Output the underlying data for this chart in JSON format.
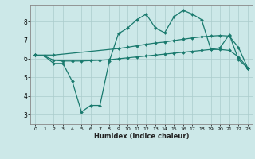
{
  "title": "",
  "xlabel": "Humidex (Indice chaleur)",
  "bg_color": "#cce8e8",
  "line_color": "#1a7a6e",
  "grid_color": "#aacccc",
  "xlim": [
    -0.5,
    23.5
  ],
  "ylim": [
    2.5,
    8.9
  ],
  "xticks": [
    0,
    1,
    2,
    3,
    4,
    5,
    6,
    7,
    8,
    9,
    10,
    11,
    12,
    13,
    14,
    15,
    16,
    17,
    18,
    19,
    20,
    21,
    22,
    23
  ],
  "yticks": [
    3,
    4,
    5,
    6,
    7,
    8
  ],
  "line1_x": [
    0,
    1,
    2,
    3,
    4,
    5,
    6,
    7,
    8,
    9,
    10,
    11,
    12,
    13,
    14,
    15,
    16,
    17,
    18,
    19,
    20,
    21,
    22,
    23
  ],
  "line1_y": [
    6.2,
    6.15,
    5.75,
    5.75,
    4.8,
    3.15,
    3.5,
    3.5,
    5.85,
    7.35,
    7.65,
    8.1,
    8.4,
    7.65,
    7.4,
    8.25,
    8.6,
    8.4,
    8.1,
    6.5,
    6.6,
    7.3,
    5.95,
    5.5
  ],
  "line2_x": [
    0,
    2,
    9,
    10,
    11,
    12,
    13,
    14,
    15,
    16,
    17,
    18,
    19,
    20,
    21,
    22,
    23
  ],
  "line2_y": [
    6.2,
    6.2,
    6.55,
    6.62,
    6.7,
    6.78,
    6.85,
    6.9,
    6.98,
    7.05,
    7.12,
    7.18,
    7.22,
    7.25,
    7.22,
    6.6,
    5.5
  ],
  "line3_x": [
    0,
    1,
    2,
    3,
    4,
    5,
    6,
    7,
    8,
    9,
    10,
    11,
    12,
    13,
    14,
    15,
    16,
    17,
    18,
    19,
    20,
    21,
    22,
    23
  ],
  "line3_y": [
    6.2,
    6.15,
    5.92,
    5.88,
    5.88,
    5.88,
    5.9,
    5.92,
    5.95,
    6.0,
    6.05,
    6.1,
    6.15,
    6.2,
    6.25,
    6.3,
    6.35,
    6.4,
    6.45,
    6.5,
    6.5,
    6.45,
    6.1,
    5.5
  ]
}
